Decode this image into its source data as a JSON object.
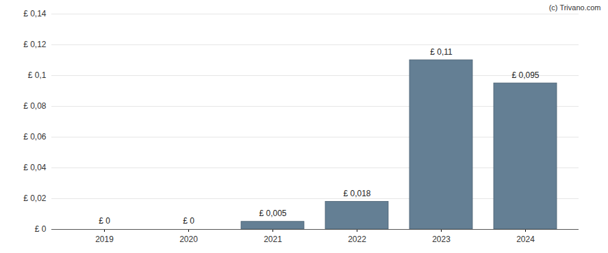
{
  "chart_data": {
    "type": "bar",
    "caption": "(c) Trivano.com",
    "categories": [
      "2019",
      "2020",
      "2021",
      "2022",
      "2023",
      "2024"
    ],
    "values": [
      0,
      0,
      0.005,
      0.018,
      0.11,
      0.095
    ],
    "value_labels": [
      "£ 0",
      "£ 0",
      "£ 0,005",
      "£ 0,018",
      "£ 0,11",
      "£ 0,095"
    ],
    "data_labels": true,
    "color": "#647f94",
    "ylim": [
      0,
      0.14
    ],
    "yticks": [
      {
        "value": 0,
        "label": "£ 0"
      },
      {
        "value": 0.02,
        "label": "£ 0,02"
      },
      {
        "value": 0.04,
        "label": "£ 0,04"
      },
      {
        "value": 0.06,
        "label": "£ 0,06"
      },
      {
        "value": 0.08,
        "label": "£ 0,08"
      },
      {
        "value": 0.1,
        "label": "£ 0,1"
      },
      {
        "value": 0.12,
        "label": "£ 0,12"
      },
      {
        "value": 0.14,
        "label": "£ 0,14"
      }
    ],
    "grid": true
  }
}
